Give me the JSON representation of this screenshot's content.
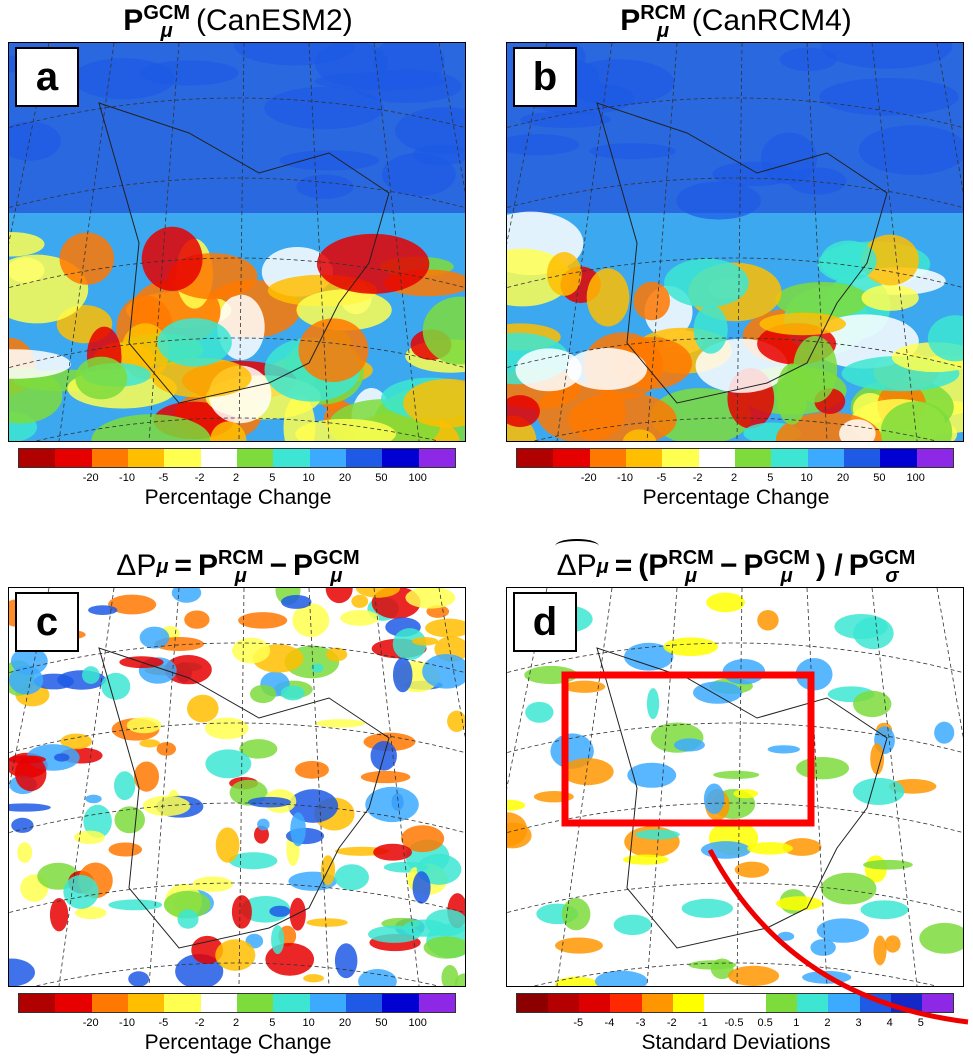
{
  "panels": [
    {
      "letter": "a",
      "title": [
        {
          "text": "P",
          "sup": "GCM",
          "sub": "μ",
          "bold": true
        },
        {
          "text": "(CanESM2)"
        }
      ],
      "colorbar": {
        "colors": [
          "#b00000",
          "#e60000",
          "#ff7800",
          "#ffbe00",
          "#ffff50",
          "#ffffff",
          "#7ddc3c",
          "#3ce6d2",
          "#3caaff",
          "#1e5ae6",
          "#0000d2",
          "#8c28e6"
        ],
        "labels": [
          "-20",
          "-10",
          "-5",
          "-2",
          "2",
          "5",
          "10",
          "20",
          "50",
          "100"
        ],
        "caption": "Percentage Change"
      }
    },
    {
      "letter": "b",
      "title": [
        {
          "text": "P",
          "sup": "RCM",
          "sub": "μ",
          "bold": true
        },
        {
          "text": "(CanRCM4)"
        }
      ],
      "colorbar": {
        "colors": [
          "#b00000",
          "#e60000",
          "#ff7800",
          "#ffbe00",
          "#ffff50",
          "#ffffff",
          "#7ddc3c",
          "#3ce6d2",
          "#3caaff",
          "#1e5ae6",
          "#0000d2",
          "#8c28e6"
        ],
        "labels": [
          "-20",
          "-10",
          "-5",
          "-2",
          "2",
          "5",
          "10",
          "20",
          "50",
          "100"
        ],
        "caption": "Percentage Change"
      }
    },
    {
      "letter": "c",
      "title": [
        {
          "text": "ΔP",
          "sub": "μ"
        },
        {
          "text": "=",
          "bold": true
        },
        {
          "text": "P",
          "sup": "RCM",
          "sub": "μ",
          "bold": true
        },
        {
          "text": "−",
          "bold": true
        },
        {
          "text": "P",
          "sup": "GCM",
          "sub": "μ",
          "bold": true
        }
      ],
      "colorbar": {
        "colors": [
          "#b00000",
          "#e60000",
          "#ff7800",
          "#ffbe00",
          "#ffff50",
          "#ffffff",
          "#7ddc3c",
          "#3ce6d2",
          "#3caaff",
          "#1e5ae6",
          "#0000d2",
          "#8c28e6"
        ],
        "labels": [
          "-20",
          "-10",
          "-5",
          "-2",
          "2",
          "5",
          "10",
          "20",
          "50",
          "100"
        ],
        "caption": "Percentage Change"
      }
    },
    {
      "letter": "d",
      "title": [
        {
          "text": "ΔP",
          "sub": "μ",
          "hat": true
        },
        {
          "text": "=",
          "bold": true
        },
        {
          "text": "(P",
          "sup": "RCM",
          "sub": "μ",
          "bold": true
        },
        {
          "text": "−",
          "bold": true
        },
        {
          "text": "P",
          "sup": "GCM",
          "sub": "μ",
          "bold": true
        },
        {
          "text": ") /",
          "bold": true
        },
        {
          "text": "P",
          "sup": "GCM",
          "sub": "σ",
          "bold": true
        }
      ],
      "colorbar": {
        "colors": [
          "#8c0000",
          "#b40000",
          "#dc0000",
          "#ff2800",
          "#ff9600",
          "#ffff00",
          "#ffffff",
          "#ffffff",
          "#7ddc3c",
          "#3ce6d2",
          "#3caaff",
          "#1e5ae6",
          "#1428c8",
          "#8c28e6"
        ],
        "labels": [
          "-5",
          "-4",
          "-3",
          "-2",
          "-1",
          "-0.5",
          "0.5",
          "1",
          "2",
          "3",
          "4",
          "5"
        ],
        "caption": "Standard Deviations"
      }
    }
  ]
}
